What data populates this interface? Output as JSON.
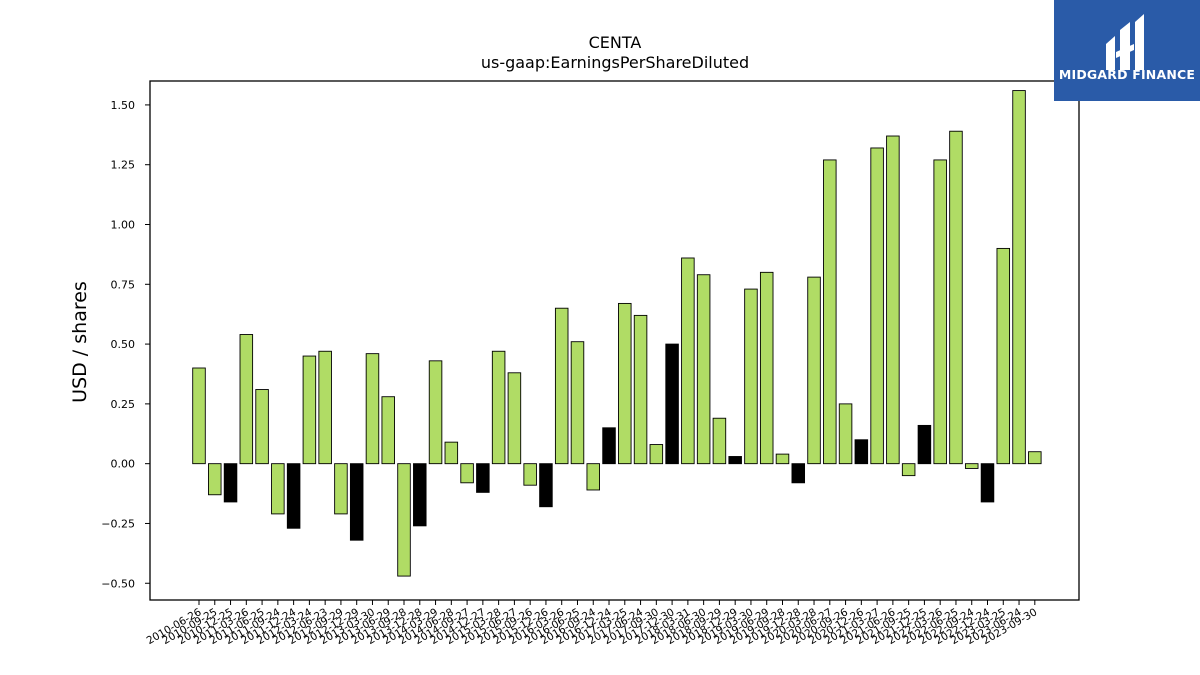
{
  "brand": {
    "name": "MIDGARD FINANCE",
    "logo_icon": "midgard-finance-logo-icon",
    "background": "#2a5ba8"
  },
  "chart_data": {
    "type": "bar",
    "title": "CENTA",
    "subtitle": "us-gaap:EarningsPerShareDiluted",
    "xlabel": "",
    "ylabel": "USD / shares",
    "ylim": [
      -0.57,
      1.6
    ],
    "yticks": [
      -0.5,
      -0.25,
      0.0,
      0.25,
      0.5,
      0.75,
      1.0,
      1.25,
      1.5
    ],
    "ytick_labels": [
      "−0.50",
      "−0.25",
      "0.00",
      "0.25",
      "0.50",
      "0.75",
      "1.00",
      "1.25",
      "1.50"
    ],
    "grid": false,
    "colors": {
      "default": "#b0dc65",
      "highlight": "#000000",
      "edge": "#000000"
    },
    "categories": [
      "2010-06-26",
      "2010-09-25",
      "2010-12-25",
      "2011-03-26",
      "2011-06-25",
      "2011-09-24",
      "2011-12-24",
      "2012-03-24",
      "2012-06-23",
      "2012-09-29",
      "2012-12-29",
      "2013-03-30",
      "2013-06-29",
      "2013-09-28",
      "2013-12-28",
      "2014-03-29",
      "2014-06-28",
      "2014-09-27",
      "2014-12-27",
      "2015-03-28",
      "2015-06-27",
      "2015-09-26",
      "2015-12-26",
      "2016-03-26",
      "2016-06-25",
      "2016-09-24",
      "2016-12-24",
      "2017-03-25",
      "2017-06-24",
      "2017-09-30",
      "2017-12-30",
      "2018-03-31",
      "2018-06-30",
      "2018-09-29",
      "2018-12-29",
      "2019-03-30",
      "2019-06-29",
      "2019-09-28",
      "2019-12-28",
      "2020-03-28",
      "2020-06-27",
      "2020-09-26",
      "2020-12-26",
      "2021-03-27",
      "2021-06-26",
      "2021-09-25",
      "2021-12-25",
      "2022-03-26",
      "2022-06-25",
      "2022-09-24",
      "2022-12-24",
      "2023-03-25",
      "2023-06-24",
      "2023-09-30"
    ],
    "values": [
      0.4,
      -0.13,
      -0.16,
      0.54,
      0.31,
      -0.21,
      -0.27,
      0.45,
      0.47,
      -0.21,
      -0.32,
      0.46,
      0.28,
      -0.47,
      -0.26,
      0.43,
      0.09,
      -0.08,
      -0.12,
      0.47,
      0.38,
      -0.09,
      -0.18,
      0.65,
      0.51,
      -0.11,
      0.15,
      0.67,
      0.62,
      0.08,
      0.5,
      0.86,
      0.79,
      0.19,
      0.03,
      0.73,
      0.8,
      0.04,
      -0.08,
      0.78,
      1.27,
      0.25,
      0.1,
      1.32,
      1.37,
      -0.05,
      0.16,
      1.27,
      1.39,
      -0.02,
      -0.16,
      0.9,
      1.56,
      0.05
    ],
    "highlight": [
      false,
      false,
      true,
      false,
      false,
      false,
      true,
      false,
      false,
      false,
      true,
      false,
      false,
      false,
      true,
      false,
      false,
      false,
      true,
      false,
      false,
      false,
      true,
      false,
      false,
      false,
      true,
      false,
      false,
      false,
      true,
      false,
      false,
      false,
      true,
      false,
      false,
      false,
      true,
      false,
      false,
      false,
      true,
      false,
      false,
      false,
      true,
      false,
      false,
      false,
      true,
      false,
      false,
      false
    ]
  }
}
